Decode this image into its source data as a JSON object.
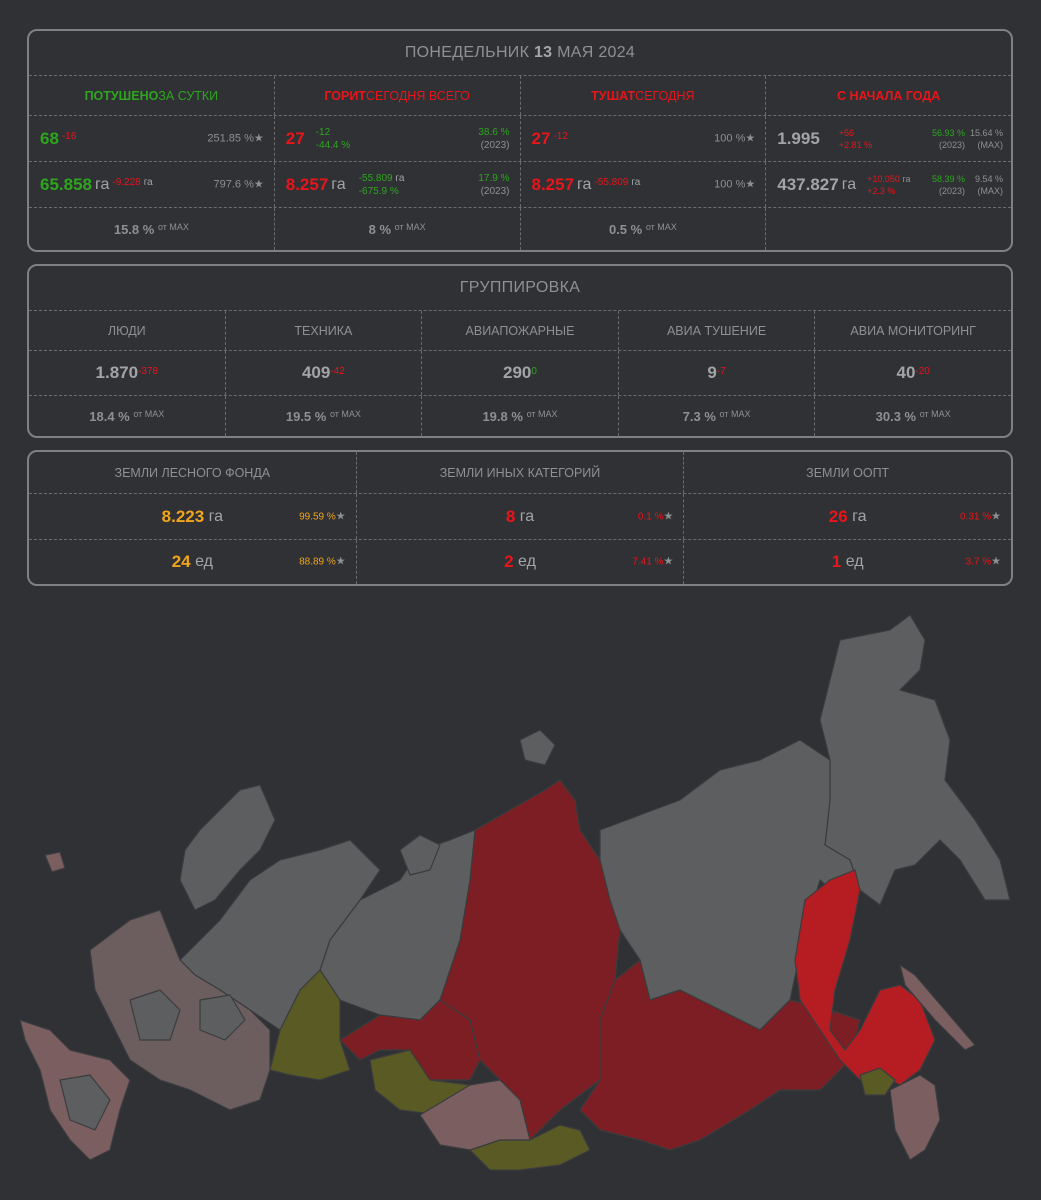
{
  "daily": {
    "title_prefix": "ПОНЕДЕЛЬНИК",
    "title_day": "13",
    "title_suffix": "МАЯ 2024",
    "headers": [
      {
        "strong": "ПОТУШЕНО",
        "rest": " ЗА СУТКИ"
      },
      {
        "strong": "ГОРИТ",
        "rest": " СЕГОДНЯ ВСЕГО"
      },
      {
        "strong": "ТУШАТ",
        "rest": " СЕГОДНЯ"
      },
      {
        "strong": "",
        "rest": "С НАЧАЛА ГОДА"
      }
    ],
    "extinguished": {
      "count": "68",
      "count_delta": "-16",
      "count_pct": "251.85 %",
      "area": "65.858",
      "area_unit": "га",
      "area_delta": "-9.228",
      "area_delta_unit": "га",
      "area_pct": "797.6 %",
      "max_pct": "15.8 %",
      "max_label": "от MAX"
    },
    "burning": {
      "count": "27",
      "count_delta": "-12",
      "count_delta_pct": "-44.4 %",
      "count_pct": "38.6 %",
      "count_year": "(2023)",
      "area": "8.257",
      "area_unit": "га",
      "area_delta": "-55.809",
      "area_delta_unit": "га",
      "area_delta_pct": "-675.9 %",
      "area_pct": "17.9 %",
      "area_year": "(2023)",
      "max_pct": "8 %",
      "max_label": "от MAX"
    },
    "fighting": {
      "count": "27",
      "count_delta": "-12",
      "count_pct": "100 %",
      "area": "8.257",
      "area_unit": "га",
      "area_delta": "-55.809",
      "area_delta_unit": "га",
      "area_pct": "100 %",
      "max_pct": "0.5 %",
      "max_label": "от MAX"
    },
    "year": {
      "count": "1.995",
      "count_delta": "+56",
      "count_delta_pct": "+2.81 %",
      "count_pct": "56.93 %",
      "count_year": "(2023)",
      "count_max_pct": "15.64 %",
      "count_max_label": "(MAX)",
      "area": "437.827",
      "area_unit": "га",
      "area_delta": "+10.050",
      "area_delta_unit": "га",
      "area_delta_pct": "+2.3 %",
      "area_pct": "58.39 %",
      "area_year": "(2023)",
      "area_max_pct": "9.54 %",
      "area_max_label": "(MAX)"
    }
  },
  "group": {
    "title": "ГРУППИРОВКА",
    "items": [
      {
        "label": "ЛЮДИ",
        "value": "1.870",
        "delta": "-378",
        "delta_color": "red",
        "max_pct": "18.4 %",
        "max_label": "от MAX"
      },
      {
        "label": "ТЕХНИКА",
        "value": "409",
        "delta": "-42",
        "delta_color": "red",
        "max_pct": "19.5 %",
        "max_label": "от MAX"
      },
      {
        "label": "АВИАПОЖАРНЫЕ",
        "value": "290",
        "delta": "0",
        "delta_color": "green",
        "max_pct": "19.8 %",
        "max_label": "от MAX"
      },
      {
        "label": "АВИА ТУШЕНИЕ",
        "value": "9",
        "delta": "-7",
        "delta_color": "red",
        "max_pct": "7.3 %",
        "max_label": "от MAX"
      },
      {
        "label": "АВИА МОНИТОРИНГ",
        "value": "40",
        "delta": "-20",
        "delta_color": "red",
        "max_pct": "30.3 %",
        "max_label": "от MAX"
      }
    ]
  },
  "lands": {
    "items": [
      {
        "label": "ЗЕМЛИ ЛЕСНОГО ФОНДА",
        "area": "8.223",
        "area_unit": "га",
        "area_pct": "99.59 %",
        "count": "24",
        "count_unit": "ед",
        "count_pct": "88.89 %",
        "color": "orange"
      },
      {
        "label": "ЗЕМЛИ ИНЫХ КАТЕГОРИЙ",
        "area": "8",
        "area_unit": "га",
        "area_pct": "0.1 %",
        "count": "2",
        "count_unit": "ед",
        "count_pct": "7.41 %",
        "color": "red"
      },
      {
        "label": "ЗЕМЛИ ООПТ",
        "area": "26",
        "area_unit": "га",
        "area_pct": "0.31 %",
        "count": "1",
        "count_unit": "ед",
        "count_pct": "3.7 %",
        "color": "red"
      }
    ]
  },
  "colors": {
    "background": "#2f3134",
    "green": "#2fa51f",
    "red": "#e8151a",
    "orange": "#f2a51b",
    "region_gray": "#5c5e60",
    "region_pink": "#7a5e60",
    "region_darkred": "#7c1e23",
    "region_red": "#b51d22",
    "region_olive": "#5a5a24"
  },
  "icons": {
    "star": "★"
  }
}
